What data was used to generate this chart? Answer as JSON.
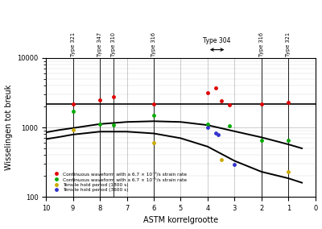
{
  "xlabel": "ASTM korrelgrootte",
  "ylabel": "Wisselingen tot breuk",
  "xlim": [
    10,
    0
  ],
  "ylim": [
    100,
    10000
  ],
  "background": "#ffffff",
  "red_dots": [
    [
      9,
      2200
    ],
    [
      8,
      2500
    ],
    [
      7.5,
      2800
    ],
    [
      6,
      2200
    ],
    [
      4,
      3200
    ],
    [
      3.7,
      3700
    ],
    [
      3.5,
      2450
    ],
    [
      3.2,
      2100
    ],
    [
      2,
      2200
    ],
    [
      1,
      2300
    ]
  ],
  "green_dots": [
    [
      9,
      1700
    ],
    [
      8,
      1100
    ],
    [
      7.5,
      1080
    ],
    [
      6,
      1500
    ],
    [
      4,
      1100
    ],
    [
      3.2,
      1050
    ],
    [
      2,
      660
    ],
    [
      1,
      650
    ]
  ],
  "yellow_dots": [
    [
      9,
      930
    ],
    [
      6,
      600
    ],
    [
      3.5,
      340
    ],
    [
      1,
      230
    ]
  ],
  "blue_dots": [
    [
      4,
      1000
    ],
    [
      3.7,
      820
    ],
    [
      3.6,
      790
    ],
    [
      3,
      290
    ]
  ],
  "hline_y": 2200,
  "curve1_x": [
    10,
    9.5,
    9,
    8,
    7,
    6,
    5,
    4,
    3,
    2,
    1,
    0.5
  ],
  "curve1_y": [
    850,
    920,
    980,
    1120,
    1200,
    1230,
    1200,
    1080,
    880,
    720,
    570,
    500
  ],
  "curve2_x": [
    10,
    9.5,
    9,
    8,
    7,
    6,
    5,
    4,
    3,
    2,
    1,
    0.5
  ],
  "curve2_y": [
    680,
    730,
    790,
    870,
    870,
    820,
    700,
    530,
    330,
    230,
    185,
    160
  ],
  "type_vlines": [
    9,
    8,
    7.5,
    6,
    2,
    1
  ],
  "type_label_data": [
    [
      "Type 321",
      9
    ],
    [
      "Type 347",
      8
    ],
    [
      "Type 310",
      7.5
    ],
    [
      "Type 316",
      6
    ],
    [
      "Type 316",
      2
    ],
    [
      "Type 321",
      1
    ]
  ],
  "type304_x1": 4.0,
  "type304_x2": 3.3,
  "type304_label": "Type 304",
  "legend_items": [
    {
      "label": "Continuous waveform with a 6.7 × 10⁻³/s strain rate",
      "color": "#e00000"
    },
    {
      "label": "Continuous waveform with a 6.7 × 10⁻⁵/s strain rate",
      "color": "#00aa00"
    },
    {
      "label": "Tensile hold period (1800 s)",
      "color": "#ccaa00"
    },
    {
      "label": "Tensile hold period (3600 s)",
      "color": "#3333cc"
    }
  ]
}
